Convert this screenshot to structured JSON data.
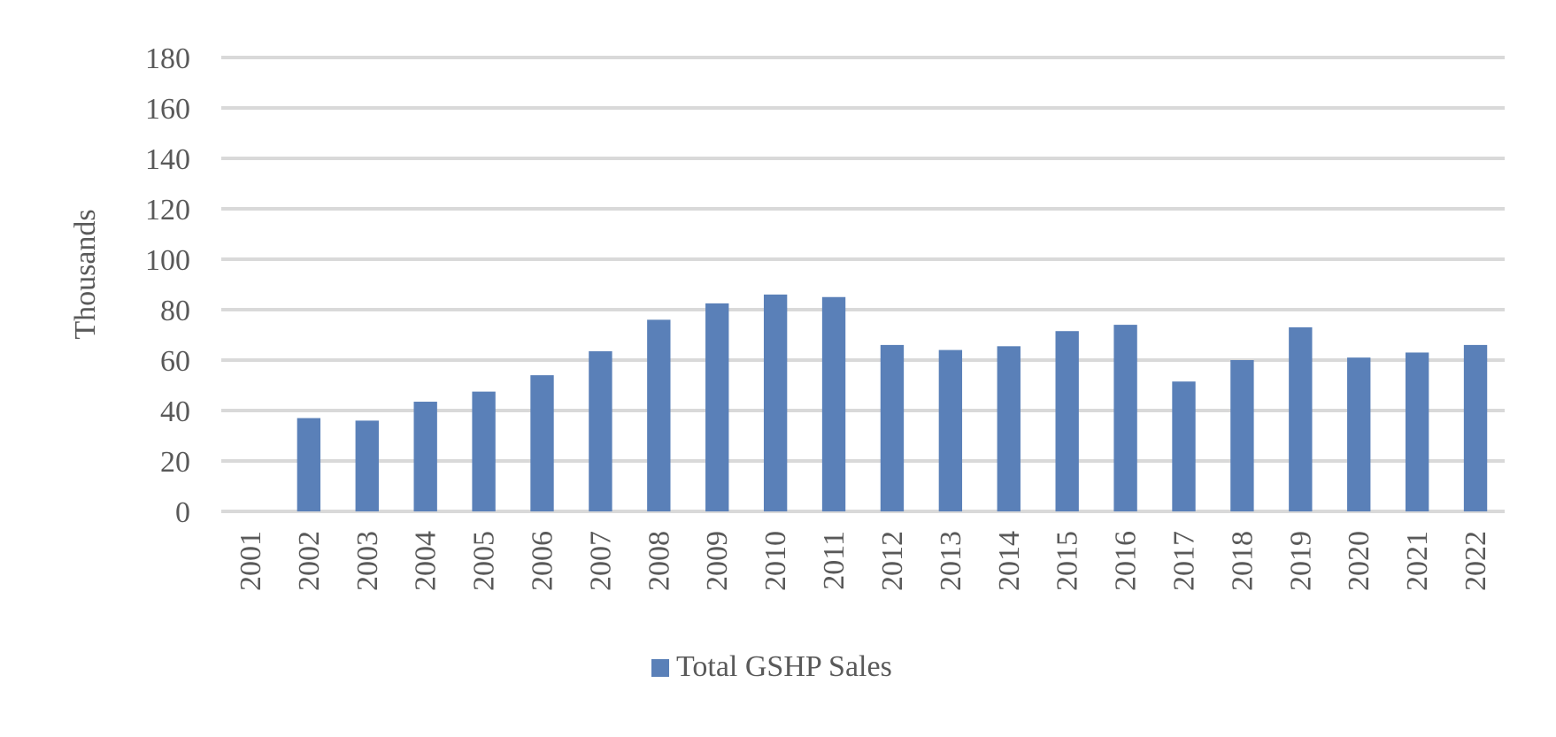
{
  "chart_data": {
    "type": "bar",
    "title": "",
    "xlabel": "",
    "ylabel": "Thousands",
    "ylim": [
      0,
      180
    ],
    "yticks": [
      0,
      20,
      40,
      60,
      80,
      100,
      120,
      140,
      160,
      180
    ],
    "grid": true,
    "legend_position": "bottom-center",
    "categories": [
      "2001",
      "2002",
      "2003",
      "2004",
      "2005",
      "2006",
      "2007",
      "2008",
      "2009",
      "2010",
      "2011",
      "2012",
      "2013",
      "2014",
      "2015",
      "2016",
      "2017",
      "2018",
      "2019",
      "2020",
      "2021",
      "2022"
    ],
    "series": [
      {
        "name": "Total GSHP Sales",
        "color": "#5a80b8",
        "values": [
          0,
          37,
          36,
          43.5,
          47.5,
          54,
          63.5,
          76,
          82.5,
          86,
          85,
          66,
          64,
          65.5,
          71.5,
          74,
          51.5,
          60,
          73,
          61,
          63,
          66
        ]
      }
    ],
    "gridline_color": "#d9d9d9"
  }
}
